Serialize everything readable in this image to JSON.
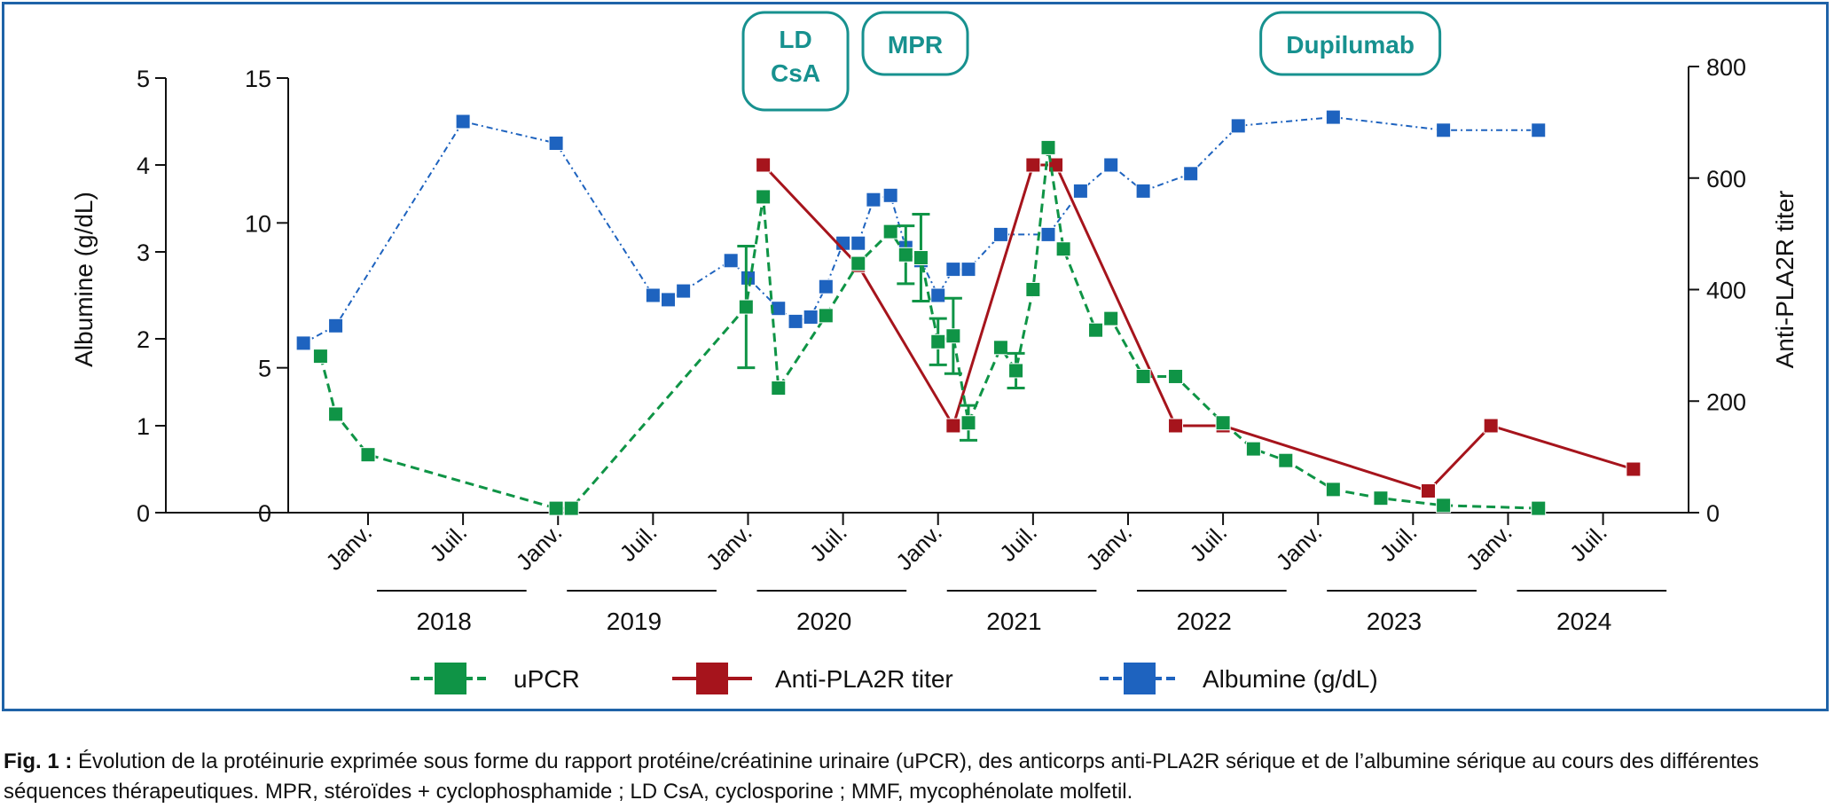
{
  "figure": {
    "caption_label": "Fig. 1 :",
    "caption_text": "Évolution de la protéinurie exprimée sous forme du rapport protéine/créatinine urinaire (uPCR), des anticorps anti-PLA2R sérique et de l’albumine sérique au cours des différentes séquences thérapeutiques. MPR, stéroïdes + cyclophosphamide ; LD CsA, cyclosporine ; MMF, mycophénolate molfetil."
  },
  "chart_data": {
    "type": "line",
    "title": "",
    "xlabel": "",
    "ylabel_left": "Albumine (g/dL)",
    "ylabel_right": "Anti-PLA2R titer",
    "colors": {
      "uPCR": "#0f9446",
      "anti": "#a6141c",
      "albumine": "#1e63bf",
      "treatment": "#17918f",
      "frame": "#1f63a8"
    },
    "x_tick_labels": [
      "Janv.",
      "Juil.",
      "Janv.",
      "Juil.",
      "Janv.",
      "Juil.",
      "Janv.",
      "Juil.",
      "Janv.",
      "Juil.",
      "Janv.",
      "Juil.",
      "Janv.",
      "Juil."
    ],
    "years": [
      "2018",
      "2019",
      "2020",
      "2021",
      "2022",
      "2023",
      "2024"
    ],
    "albumine_axis": {
      "range": [
        0,
        5
      ],
      "ticks": [
        "0",
        "1",
        "2",
        "3",
        "4",
        "5"
      ]
    },
    "upcr_axis": {
      "range": [
        0,
        15
      ],
      "ticks": [
        "0",
        "5",
        "10",
        "15"
      ]
    },
    "anti_axis": {
      "range": [
        0,
        800
      ],
      "ticks": [
        "0",
        "200",
        "400",
        "600",
        "800"
      ]
    },
    "x_range": [
      2017.58,
      2024.95
    ],
    "treatments": [
      {
        "lines": [
          "LD",
          "CsA"
        ],
        "date": 2020.25
      },
      {
        "lines": [
          "MPR"
        ],
        "date": 2020.88
      },
      {
        "lines": [
          "Dupilumab"
        ],
        "date": 2023.17
      }
    ],
    "series": [
      {
        "name": "uPCR",
        "axis": "upcr",
        "points": [
          {
            "x": 2017.75,
            "y": 5.4
          },
          {
            "x": 2017.83,
            "y": 3.4
          },
          {
            "x": 2018.0,
            "y": 2.0
          },
          {
            "x": 2018.99,
            "y": 0.15
          },
          {
            "x": 2019.07,
            "y": 0.15
          },
          {
            "x": 2019.99,
            "y": 7.1,
            "err": 2.1
          },
          {
            "x": 2020.08,
            "y": 10.9
          },
          {
            "x": 2020.16,
            "y": 4.3
          },
          {
            "x": 2020.41,
            "y": 6.8
          },
          {
            "x": 2020.58,
            "y": 8.6
          },
          {
            "x": 2020.75,
            "y": 9.7
          },
          {
            "x": 2020.83,
            "y": 8.9,
            "err": 1.0
          },
          {
            "x": 2020.91,
            "y": 8.8,
            "err": 1.5
          },
          {
            "x": 2021.0,
            "y": 5.9,
            "err": 0.8
          },
          {
            "x": 2021.08,
            "y": 6.1,
            "err": 1.3
          },
          {
            "x": 2021.16,
            "y": 3.1,
            "err": 0.6
          },
          {
            "x": 2021.33,
            "y": 5.7
          },
          {
            "x": 2021.41,
            "y": 4.9,
            "err": 0.6
          },
          {
            "x": 2021.5,
            "y": 7.7
          },
          {
            "x": 2021.58,
            "y": 12.6
          },
          {
            "x": 2021.66,
            "y": 9.1
          },
          {
            "x": 2021.83,
            "y": 6.3
          },
          {
            "x": 2021.91,
            "y": 6.7
          },
          {
            "x": 2022.08,
            "y": 4.7
          },
          {
            "x": 2022.25,
            "y": 4.7
          },
          {
            "x": 2022.5,
            "y": 3.1
          },
          {
            "x": 2022.66,
            "y": 2.2
          },
          {
            "x": 2022.83,
            "y": 1.8
          },
          {
            "x": 2023.08,
            "y": 0.8
          },
          {
            "x": 2023.33,
            "y": 0.5
          },
          {
            "x": 2023.66,
            "y": 0.25
          },
          {
            "x": 2024.16,
            "y": 0.15
          }
        ]
      },
      {
        "name": "Anti-PLA2R titer",
        "axis": "anti",
        "points": [
          {
            "x": 2020.08,
            "y": 640
          },
          {
            "x": 2020.58,
            "y": 455
          },
          {
            "x": 2021.08,
            "y": 160
          },
          {
            "x": 2021.5,
            "y": 640
          },
          {
            "x": 2021.62,
            "y": 640
          },
          {
            "x": 2022.25,
            "y": 160
          },
          {
            "x": 2022.5,
            "y": 160
          },
          {
            "x": 2023.58,
            "y": 40
          },
          {
            "x": 2023.91,
            "y": 160
          },
          {
            "x": 2024.66,
            "y": 80
          }
        ]
      },
      {
        "name": "Albumine (g/dL)",
        "axis": "albumine",
        "points": [
          {
            "x": 2017.66,
            "y": 1.95
          },
          {
            "x": 2017.83,
            "y": 2.15
          },
          {
            "x": 2018.5,
            "y": 4.5
          },
          {
            "x": 2018.99,
            "y": 4.25
          },
          {
            "x": 2019.5,
            "y": 2.5
          },
          {
            "x": 2019.58,
            "y": 2.45
          },
          {
            "x": 2019.66,
            "y": 2.55
          },
          {
            "x": 2019.91,
            "y": 2.9
          },
          {
            "x": 2020.0,
            "y": 2.7
          },
          {
            "x": 2020.16,
            "y": 2.35
          },
          {
            "x": 2020.25,
            "y": 2.2
          },
          {
            "x": 2020.33,
            "y": 2.25
          },
          {
            "x": 2020.41,
            "y": 2.6
          },
          {
            "x": 2020.5,
            "y": 3.1
          },
          {
            "x": 2020.58,
            "y": 3.1
          },
          {
            "x": 2020.66,
            "y": 3.6
          },
          {
            "x": 2020.75,
            "y": 3.65
          },
          {
            "x": 2020.83,
            "y": 3.05
          },
          {
            "x": 2020.91,
            "y": 2.9
          },
          {
            "x": 2021.0,
            "y": 2.5
          },
          {
            "x": 2021.08,
            "y": 2.8
          },
          {
            "x": 2021.16,
            "y": 2.8
          },
          {
            "x": 2021.33,
            "y": 3.2
          },
          {
            "x": 2021.58,
            "y": 3.2
          },
          {
            "x": 2021.75,
            "y": 3.7
          },
          {
            "x": 2021.91,
            "y": 4.0
          },
          {
            "x": 2022.08,
            "y": 3.7
          },
          {
            "x": 2022.33,
            "y": 3.9
          },
          {
            "x": 2022.58,
            "y": 4.45
          },
          {
            "x": 2023.08,
            "y": 4.55
          },
          {
            "x": 2023.66,
            "y": 4.4
          },
          {
            "x": 2024.16,
            "y": 4.4
          }
        ]
      }
    ]
  }
}
